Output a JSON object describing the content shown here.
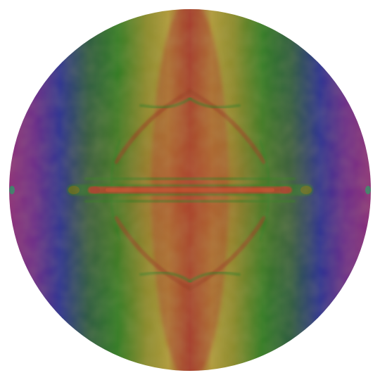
{
  "image": {
    "shape": "circle",
    "background": "#ffffff",
    "palette": {
      "edge": "#8b2a7a",
      "blue": "#2a2f92",
      "green": "#2e7a22",
      "olive": "#8a8a2a",
      "yellow": "#b5a03c",
      "red": "#a33a2a",
      "highlight": "#b04025"
    },
    "features": [
      "horizontal-central-streak",
      "diamond-wave-pattern",
      "vertical-color-bands"
    ]
  }
}
